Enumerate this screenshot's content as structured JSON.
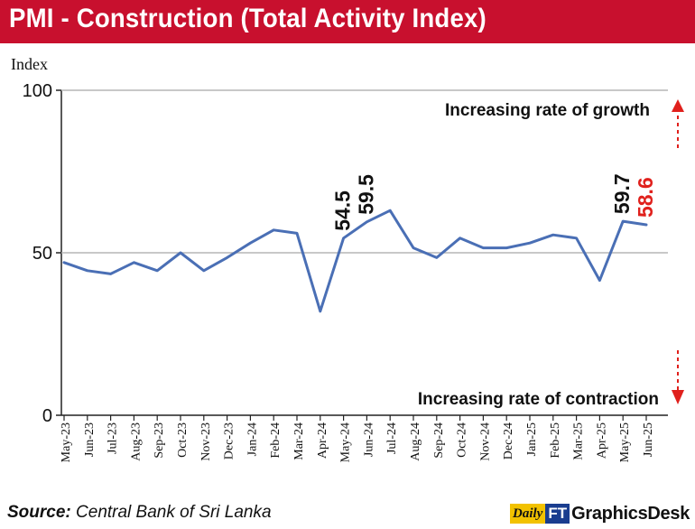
{
  "title": "PMI - Construction (Total Activity Index)",
  "source_label": "Source:",
  "source_text": "Central Bank of Sri Lanka",
  "logo": {
    "daily": "Daily",
    "ft": "FT",
    "brand": "GraphicsDesk"
  },
  "colors": {
    "title_bar": "#c8102e",
    "line": "#4a6fb5",
    "arrow": "#e0201c",
    "highlight_label": "#e0201c",
    "grid": "#b5b5b5"
  },
  "chart_data": {
    "type": "line",
    "ylabel": "Index",
    "ylim": [
      0,
      100
    ],
    "yticks": [
      0,
      50,
      100
    ],
    "gridlines": [
      50,
      100
    ],
    "categories": [
      "May-23",
      "Jun-23",
      "Jul-23",
      "Aug-23",
      "Sep-23",
      "Oct-23",
      "Nov-23",
      "Dec-23",
      "Jan-24",
      "Feb-24",
      "Mar-24",
      "Apr-24",
      "May-24",
      "Jun-24",
      "Jul-24",
      "Aug-24",
      "Sep-24",
      "Oct-24",
      "Nov-24",
      "Dec-24",
      "Jan-25",
      "Feb-25",
      "Mar-25",
      "Apr-25",
      "May-25",
      "Jun-25"
    ],
    "series": [
      {
        "values": [
          47.0,
          44.5,
          43.5,
          47.0,
          44.5,
          50.0,
          44.5,
          48.5,
          53.0,
          57.0,
          56.0,
          32.0,
          54.5,
          59.5,
          63.0,
          51.5,
          48.5,
          54.5,
          51.5,
          51.5,
          53.0,
          55.5,
          54.5,
          41.5,
          59.7,
          58.6
        ]
      }
    ],
    "data_labels": [
      {
        "category": "May-24",
        "text": "54.5",
        "color": "#111111"
      },
      {
        "category": "Jun-24",
        "text": "59.5",
        "color": "#111111"
      },
      {
        "category": "May-25",
        "text": "59.7",
        "color": "#111111"
      },
      {
        "category": "Jun-25",
        "text": "58.6",
        "color": "#e0201c"
      }
    ],
    "annotations": {
      "growth": "Increasing rate of growth",
      "contraction": "Increasing rate of contraction"
    }
  }
}
